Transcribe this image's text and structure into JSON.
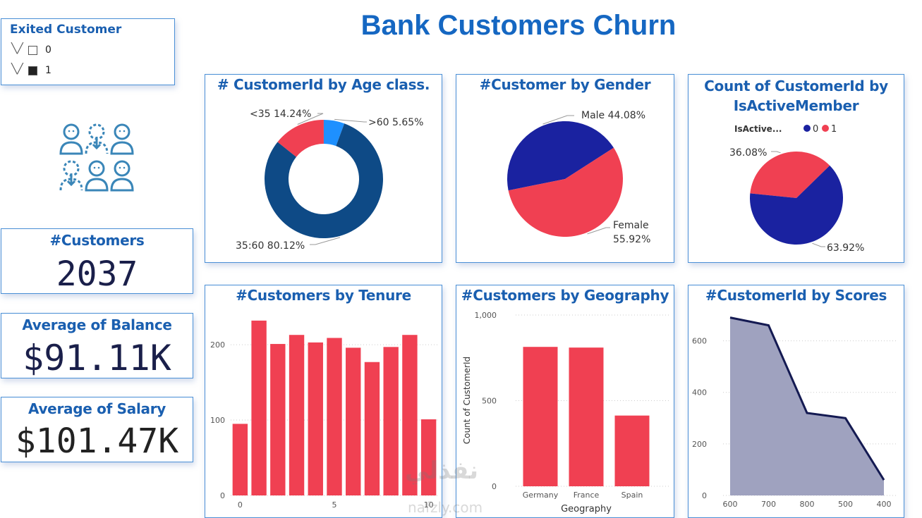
{
  "title": "Bank Customers Churn",
  "slicer": {
    "title": "Exited Customer",
    "options": [
      {
        "label": "0",
        "checked": false
      },
      {
        "label": "1",
        "checked": true
      }
    ]
  },
  "kpis": {
    "customers": {
      "label": "#Customers",
      "value": "2037"
    },
    "balance": {
      "label": "Average of Balance",
      "value": "$91.11K"
    },
    "salary": {
      "label": "Average of Salary",
      "value": "$101.47K"
    }
  },
  "icon": "customers-churn-icon",
  "watermark": {
    "text": "نفذلي",
    "sub": "nafzly.com"
  },
  "chart_data": [
    {
      "type": "pie",
      "variant": "donut",
      "title": "# CustomerId by Age class.",
      "slices": [
        {
          "label": "<35 14.24%",
          "value": 14.24,
          "color": "#f04052"
        },
        {
          "label": ">60 5.65%",
          "value": 5.65,
          "color": "#1e90ff"
        },
        {
          "label": "35:60 80.12%",
          "value": 80.12,
          "color": "#0e4a86"
        }
      ]
    },
    {
      "type": "pie",
      "title": "#Customer by Gender",
      "slices": [
        {
          "label": "Male 44.08%",
          "value": 44.08,
          "color": "#1a22a0"
        },
        {
          "label_lines": [
            "Female",
            "55.92%"
          ],
          "value": 55.92,
          "color": "#f04052"
        }
      ]
    },
    {
      "type": "pie",
      "title_lines": [
        "Count of CustomerId by",
        "IsActiveMember"
      ],
      "legend": {
        "title": "IsActive...",
        "entries": [
          {
            "label": "0",
            "color": "#1a22a0"
          },
          {
            "label": "1",
            "color": "#f04052"
          }
        ],
        "position": "top-left"
      },
      "slices": [
        {
          "label": "36.08%",
          "value": 36.08,
          "color": "#f04052"
        },
        {
          "label": "63.92%",
          "value": 63.92,
          "color": "#1a22a0"
        }
      ]
    },
    {
      "type": "bar",
      "title": "#Customers by Tenure",
      "x": [
        0,
        1,
        2,
        3,
        4,
        5,
        6,
        7,
        8,
        9,
        10
      ],
      "values": [
        95,
        232,
        201,
        213,
        203,
        209,
        196,
        177,
        197,
        213,
        101
      ],
      "ylim": [
        0,
        245
      ],
      "yticks": [
        0,
        100,
        200
      ],
      "xticks": [
        {
          "value": 0,
          "label": "0"
        },
        {
          "value": 5,
          "label": "5"
        },
        {
          "value": 10,
          "label": "10"
        }
      ],
      "color": "#f04052",
      "grid": true
    },
    {
      "type": "bar",
      "title": "#Customers by Geography",
      "categories": [
        "Germany",
        "France",
        "Spain"
      ],
      "values": [
        814,
        810,
        413
      ],
      "ylim": [
        0,
        1000
      ],
      "yticks": [
        {
          "value": 0,
          "label": "0"
        },
        {
          "value": 500,
          "label": "500"
        },
        {
          "value": 1000,
          "label": "1,000"
        }
      ],
      "xlabel": "Geography",
      "ylabel": "Count of CustomerId",
      "color": "#f04052",
      "grid": true
    },
    {
      "type": "area",
      "title": "#CustomerId by Scores",
      "categories": [
        "600",
        "700",
        "800",
        "500",
        "400"
      ],
      "values": [
        690,
        660,
        320,
        300,
        60
      ],
      "ylim": [
        0,
        700
      ],
      "yticks": [
        0,
        200,
        400,
        600
      ],
      "line_color": "#141a52",
      "fill_color": "#9fa2bf",
      "grid": true
    }
  ]
}
